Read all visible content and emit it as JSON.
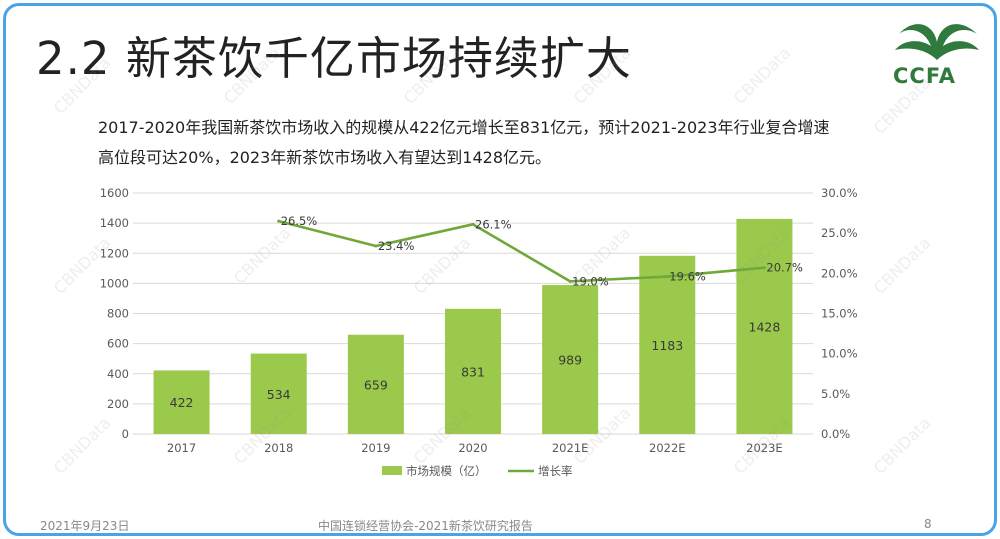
{
  "slide": {
    "title": "2.2 新茶饮千亿市场持续扩大",
    "logo_text": "CCFA",
    "intro_lines": [
      "2017-2020年我国新茶饮市场收入的规模从422亿元增长至831亿元，预计2021-2023年行业复合增速",
      "高位段可达20%，2023年新茶饮市场收入有望达到1428亿元。"
    ],
    "footer": {
      "date": "2021年9月23日",
      "source": "中国连锁经营协会-2021新茶饮研究报告",
      "page": "8"
    },
    "watermark": "CBNData"
  },
  "colors": {
    "bar": "#9bc94b",
    "line": "#70a83a",
    "axis_text": "#595959",
    "grid": "#d9d9d9",
    "border": "#4aa3e6"
  },
  "chart_data": {
    "type": "bar",
    "categories": [
      "2017",
      "2018",
      "2019",
      "2020",
      "2021E",
      "2022E",
      "2023E"
    ],
    "series": [
      {
        "name": "市场规模（亿）",
        "type": "bar",
        "axis": "left",
        "values": [
          422,
          534,
          659,
          831,
          989,
          1183,
          1428
        ],
        "labels": [
          "422",
          "534",
          "659",
          "831",
          "989",
          "1183",
          "1428"
        ]
      },
      {
        "name": "增长率",
        "type": "line",
        "axis": "right",
        "values": [
          null,
          26.5,
          23.4,
          26.1,
          19.0,
          19.6,
          20.7
        ],
        "labels": [
          "",
          "26.5%",
          "23.4%",
          "26.1%",
          "19.0%",
          "19.6%",
          "20.7%"
        ]
      }
    ],
    "y_left": {
      "min": 0,
      "max": 1600,
      "ticks": [
        "0",
        "200",
        "400",
        "600",
        "800",
        "1000",
        "1200",
        "1400",
        "1600"
      ]
    },
    "y_right": {
      "min": 0,
      "max": 30,
      "ticks": [
        "0.0%",
        "5.0%",
        "10.0%",
        "15.0%",
        "20.0%",
        "25.0%",
        "30.0%"
      ]
    },
    "grid": true,
    "legend_position": "bottom"
  }
}
